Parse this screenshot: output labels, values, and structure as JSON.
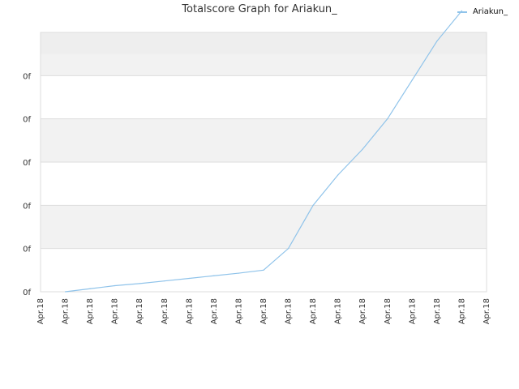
{
  "chart_data": {
    "type": "line",
    "title": "Totalscore Graph for Ariakun_",
    "xlabel": "",
    "ylabel": "",
    "x_tick_labels": [
      "Apr.18",
      "Apr.18",
      "Apr.18",
      "Apr.18",
      "Apr.18",
      "Apr.18",
      "Apr.18",
      "Apr.18",
      "Apr.18",
      "Apr.18",
      "Apr.18",
      "Apr.18",
      "Apr.18",
      "Apr.18",
      "Apr.18",
      "Apr.18",
      "Apr.18",
      "Apr.18",
      "Apr.18"
    ],
    "y_tick_labels": [
      "0f",
      "0f",
      "0f",
      "0f",
      "0f",
      "0f"
    ],
    "series": [
      {
        "name": "Ariakun_",
        "color": "#8fc3ea",
        "x": [
          1,
          2,
          3,
          4,
          5,
          6,
          7,
          8,
          9,
          10,
          11,
          12,
          13,
          14,
          15,
          16,
          17
        ],
        "y": [
          0,
          0.07,
          0.14,
          0.19,
          0.25,
          0.31,
          0.37,
          0.43,
          0.5,
          1.0,
          2.0,
          2.7,
          3.3,
          4.0,
          4.9,
          5.8,
          6.5
        ]
      }
    ],
    "xlim": [
      0,
      18
    ],
    "ylim": [
      0,
      6
    ],
    "grid": true,
    "legend_position": "top-right"
  }
}
